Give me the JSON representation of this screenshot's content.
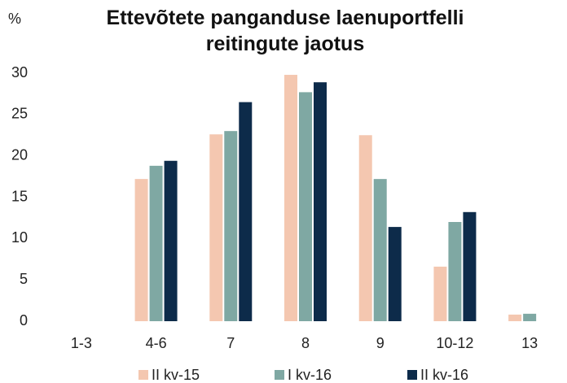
{
  "chart_data": {
    "type": "bar",
    "title": "Ettevõtete panganduse laenuportfelli reitingute jaotus",
    "y_label": "%",
    "categories": [
      "1-3",
      "4-6",
      "7",
      "8",
      "9",
      "10-12",
      "13"
    ],
    "series": [
      {
        "name": "II kv-15",
        "color": "#f4c7b0",
        "values": [
          0,
          17.2,
          22.6,
          29.8,
          22.5,
          6.6,
          0.8
        ]
      },
      {
        "name": "I kv-16",
        "color": "#7fa8a3",
        "values": [
          0,
          18.8,
          23.0,
          27.7,
          17.2,
          12.0,
          0.9
        ]
      },
      {
        "name": "II kv-16",
        "color": "#0d2b4a",
        "values": [
          0,
          19.4,
          26.5,
          28.9,
          11.4,
          13.2,
          0
        ]
      }
    ],
    "ylim": [
      0,
      30
    ],
    "yticks": [
      0,
      5,
      10,
      15,
      20,
      25,
      30
    ],
    "grid": false,
    "legend": "bottom"
  }
}
